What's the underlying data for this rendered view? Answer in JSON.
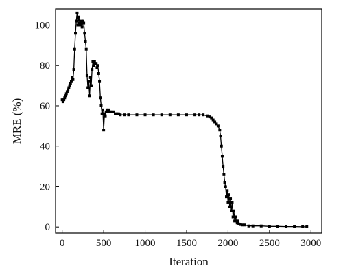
{
  "chart_data": {
    "type": "line",
    "title": "",
    "xlabel": "Iteration",
    "ylabel": "MRE (%)",
    "xlim": [
      -80,
      3130
    ],
    "ylim": [
      -3,
      108
    ],
    "xticks": [
      0,
      500,
      1000,
      1500,
      2000,
      2500,
      3000
    ],
    "yticks": [
      0,
      20,
      40,
      60,
      80,
      100
    ],
    "grid": false,
    "legend": "none",
    "series": [
      {
        "color": "#000000",
        "marker": "square",
        "x": [
          0,
          10,
          20,
          30,
          40,
          50,
          60,
          70,
          80,
          90,
          100,
          110,
          120,
          130,
          140,
          150,
          160,
          170,
          180,
          190,
          200,
          210,
          220,
          230,
          240,
          250,
          260,
          270,
          280,
          290,
          300,
          310,
          320,
          330,
          340,
          350,
          360,
          370,
          380,
          390,
          400,
          410,
          420,
          430,
          440,
          450,
          460,
          470,
          480,
          490,
          500,
          510,
          520,
          530,
          540,
          550,
          560,
          580,
          600,
          620,
          640,
          660,
          680,
          700,
          750,
          800,
          900,
          1000,
          1100,
          1200,
          1300,
          1400,
          1500,
          1600,
          1650,
          1700,
          1750,
          1780,
          1800,
          1820,
          1840,
          1860,
          1880,
          1900,
          1910,
          1920,
          1930,
          1940,
          1950,
          1960,
          1970,
          1980,
          1990,
          2000,
          2010,
          2020,
          2030,
          2040,
          2050,
          2060,
          2070,
          2080,
          2090,
          2100,
          2110,
          2120,
          2130,
          2150,
          2170,
          2200,
          2250,
          2300,
          2400,
          2500,
          2600,
          2700,
          2800,
          2900,
          2950
        ],
        "y": [
          63,
          62,
          63,
          64,
          65,
          66,
          67,
          68,
          69,
          70,
          71,
          72,
          74,
          73,
          78,
          88,
          96,
          102,
          106,
          100,
          104,
          101,
          100,
          102,
          99,
          102,
          101,
          96,
          92,
          88,
          75,
          69,
          72,
          65,
          74,
          70,
          78,
          82,
          80,
          82,
          81,
          81,
          79,
          80,
          76,
          72,
          64,
          60,
          56,
          58,
          48,
          56,
          55,
          57,
          58,
          57,
          58,
          57,
          57,
          57,
          56,
          56,
          56,
          55.5,
          55.5,
          55.5,
          55.5,
          55.5,
          55.5,
          55.5,
          55.5,
          55.5,
          55.5,
          55.5,
          55.5,
          55.5,
          55,
          54.5,
          54,
          53,
          52,
          51,
          50,
          48,
          45,
          40,
          35,
          30,
          26,
          22,
          20,
          15,
          18,
          12,
          16,
          10,
          14,
          8,
          12,
          5,
          8,
          3,
          5,
          3,
          2,
          3,
          1.5,
          1.2,
          1,
          1,
          0.5,
          0.5,
          0.5,
          0.3,
          0.3,
          0.2,
          0.2,
          0.1,
          0.1
        ]
      }
    ]
  }
}
